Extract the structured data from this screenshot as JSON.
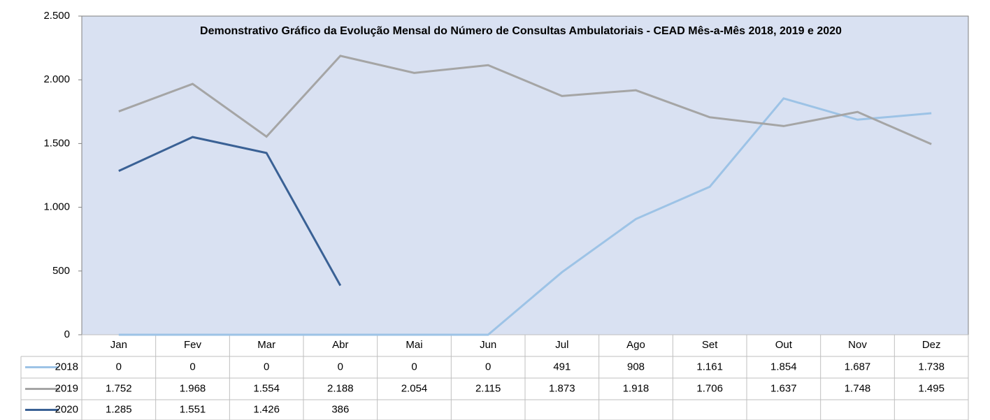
{
  "chart_data": {
    "type": "line",
    "title": "Demonstrativo Gráfico da Evolução Mensal do Número de Consultas Ambulatoriais - CEAD Mês-a-Mês 2018, 2019 e 2020",
    "categories": [
      "Jan",
      "Fev",
      "Mar",
      "Abr",
      "Mai",
      "Jun",
      "Jul",
      "Ago",
      "Set",
      "Out",
      "Nov",
      "Dez"
    ],
    "series": [
      {
        "name": "2018",
        "color": "#9dc3e6",
        "values": [
          0,
          0,
          0,
          0,
          0,
          0,
          491,
          908,
          1161,
          1854,
          1687,
          1738
        ],
        "value_labels": [
          "0",
          "0",
          "0",
          "0",
          "0",
          "0",
          "491",
          "908",
          "1.161",
          "1.854",
          "1.687",
          "1.738"
        ]
      },
      {
        "name": "2019",
        "color": "#a5a5a5",
        "values": [
          1752,
          1968,
          1554,
          2188,
          2054,
          2115,
          1873,
          1918,
          1706,
          1637,
          1748,
          1495
        ],
        "value_labels": [
          "1.752",
          "1.968",
          "1.554",
          "2.188",
          "2.054",
          "2.115",
          "1.873",
          "1.918",
          "1.706",
          "1.637",
          "1.748",
          "1.495"
        ]
      },
      {
        "name": "2020",
        "color": "#3a6195",
        "values": [
          1285,
          1551,
          1426,
          386,
          null,
          null,
          null,
          null,
          null,
          null,
          null,
          null
        ],
        "value_labels": [
          "1.285",
          "1.551",
          "1.426",
          "386",
          null,
          null,
          null,
          null,
          null,
          null,
          null,
          null
        ]
      }
    ],
    "ylim": [
      0,
      2500
    ],
    "yticks": [
      0,
      500,
      {
        "value": 1000,
        "label": "1.000"
      },
      {
        "value": 1500,
        "label": "1.500"
      },
      {
        "value": 2000,
        "label": "2.000"
      },
      {
        "value": 2500,
        "label": "2.500"
      }
    ],
    "grid": false
  }
}
